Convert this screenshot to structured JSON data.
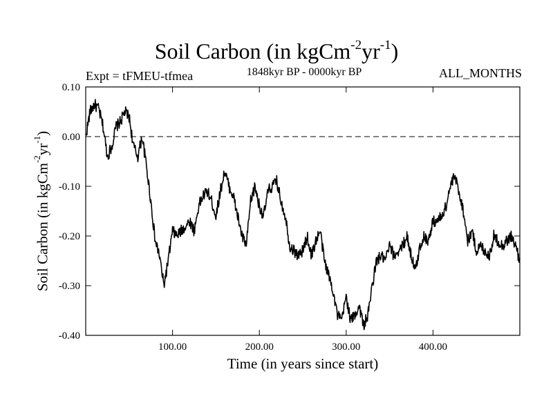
{
  "chart_data": {
    "type": "line",
    "title_main": "Soil Carbon (in kgCm",
    "title_exp1": "-2",
    "title_mid": "yr",
    "title_exp2": "-1",
    "title_end": ")",
    "expt_label": "Expt = tFMEU-tfmea",
    "period_label": "1848kyr BP - 0000kyr BP",
    "months_label": "ALL_MONTHS",
    "xlabel": "Time (in years since start)",
    "ylabel_main": "Soil Carbon (in kgCm",
    "ylabel_exp1": "-2",
    "ylabel_mid": "yr",
    "ylabel_exp2": "-1",
    "ylabel_end": ")",
    "xlim": [
      0,
      500
    ],
    "ylim": [
      -0.4,
      0.1
    ],
    "xticks": [
      100,
      200,
      300,
      400
    ],
    "xtick_labels": [
      "100.00",
      "200.00",
      "300.00",
      "400.00"
    ],
    "yticks": [
      0.1,
      0.0,
      -0.1,
      -0.2,
      -0.3,
      -0.4
    ],
    "ytick_labels": [
      "0.10",
      "0.00",
      "-0.10",
      "-0.20",
      "-0.30",
      "-0.40"
    ],
    "reference_line": {
      "y": 0.0,
      "style": "dashed"
    },
    "anchor_x": [
      0,
      5,
      10,
      15,
      20,
      25,
      30,
      35,
      40,
      45,
      50,
      55,
      60,
      65,
      70,
      75,
      80,
      85,
      90,
      95,
      100,
      105,
      110,
      115,
      120,
      125,
      130,
      135,
      140,
      145,
      150,
      155,
      160,
      165,
      170,
      175,
      180,
      185,
      190,
      195,
      200,
      205,
      210,
      215,
      220,
      225,
      230,
      235,
      240,
      245,
      250,
      255,
      260,
      265,
      270,
      275,
      280,
      285,
      290,
      295,
      300,
      305,
      310,
      315,
      320,
      325,
      330,
      335,
      340,
      345,
      350,
      355,
      360,
      365,
      370,
      375,
      380,
      385,
      390,
      395,
      400,
      405,
      410,
      415,
      420,
      425,
      430,
      435,
      440,
      445,
      450,
      455,
      460,
      465,
      470,
      475,
      480,
      485,
      490,
      495,
      500
    ],
    "anchor_y": [
      0.0,
      0.05,
      0.065,
      0.055,
      0.02,
      -0.04,
      -0.02,
      0.02,
      0.03,
      0.05,
      0.04,
      -0.02,
      -0.04,
      0.0,
      -0.06,
      -0.13,
      -0.21,
      -0.24,
      -0.3,
      -0.25,
      -0.19,
      -0.2,
      -0.19,
      -0.18,
      -0.17,
      -0.19,
      -0.14,
      -0.12,
      -0.11,
      -0.13,
      -0.16,
      -0.11,
      -0.07,
      -0.1,
      -0.12,
      -0.16,
      -0.2,
      -0.22,
      -0.13,
      -0.1,
      -0.14,
      -0.16,
      -0.11,
      -0.1,
      -0.09,
      -0.13,
      -0.16,
      -0.22,
      -0.23,
      -0.24,
      -0.23,
      -0.2,
      -0.24,
      -0.21,
      -0.19,
      -0.25,
      -0.28,
      -0.31,
      -0.36,
      -0.37,
      -0.32,
      -0.37,
      -0.36,
      -0.34,
      -0.38,
      -0.36,
      -0.3,
      -0.25,
      -0.24,
      -0.25,
      -0.22,
      -0.24,
      -0.23,
      -0.22,
      -0.2,
      -0.24,
      -0.27,
      -0.22,
      -0.2,
      -0.21,
      -0.17,
      -0.17,
      -0.16,
      -0.14,
      -0.1,
      -0.08,
      -0.11,
      -0.15,
      -0.21,
      -0.19,
      -0.23,
      -0.22,
      -0.23,
      -0.24,
      -0.2,
      -0.21,
      -0.22,
      -0.21,
      -0.2,
      -0.22,
      -0.25
    ],
    "noise_amplitude": 0.012,
    "samples": 1000
  }
}
